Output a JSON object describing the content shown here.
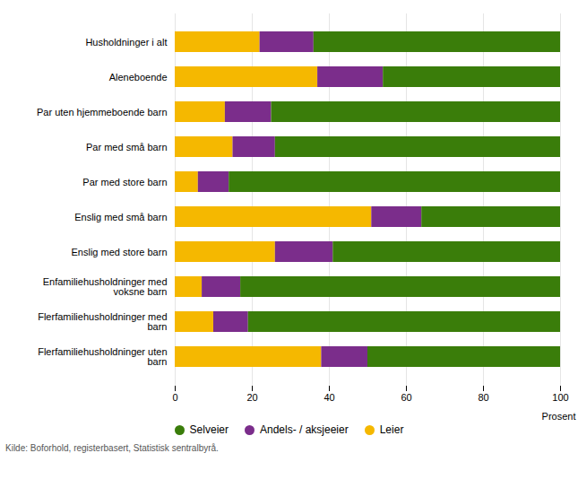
{
  "chart_data": {
    "type": "bar",
    "orientation": "horizontal",
    "stacked": true,
    "categories": [
      "Husholdninger i alt",
      "Aleneboende",
      "Par uten hjemmeboende barn",
      "Par med små barn",
      "Par med store barn",
      "Enslig med små barn",
      "Enslig med store barn",
      "Enfamiliehusholdninger med\nvoksne barn",
      "Flerfamiliehusholdninger med\nbarn",
      "Flerfamiliehusholdninger uten\nbarn"
    ],
    "series": [
      {
        "name": "Leier",
        "color": "#F5B800",
        "values": [
          22,
          37,
          13,
          15,
          6,
          51,
          26,
          7,
          10,
          38
        ]
      },
      {
        "name": "Andels- / aksjeeier",
        "color": "#7B2D8B",
        "values": [
          14,
          17,
          12,
          11,
          8,
          13,
          15,
          10,
          9,
          12
        ]
      },
      {
        "name": "Selveier",
        "color": "#3A7D0A",
        "values": [
          64,
          46,
          75,
          74,
          86,
          36,
          59,
          83,
          81,
          50
        ]
      }
    ],
    "xlabel": "Prosent",
    "xlim": [
      0,
      100
    ],
    "xticks": [
      0,
      20,
      40,
      60,
      80,
      100
    ],
    "grid": true,
    "legend": "bottom",
    "caption": "Kilde: Boforhold, registerbasert, Statistisk sentralbyrå."
  }
}
